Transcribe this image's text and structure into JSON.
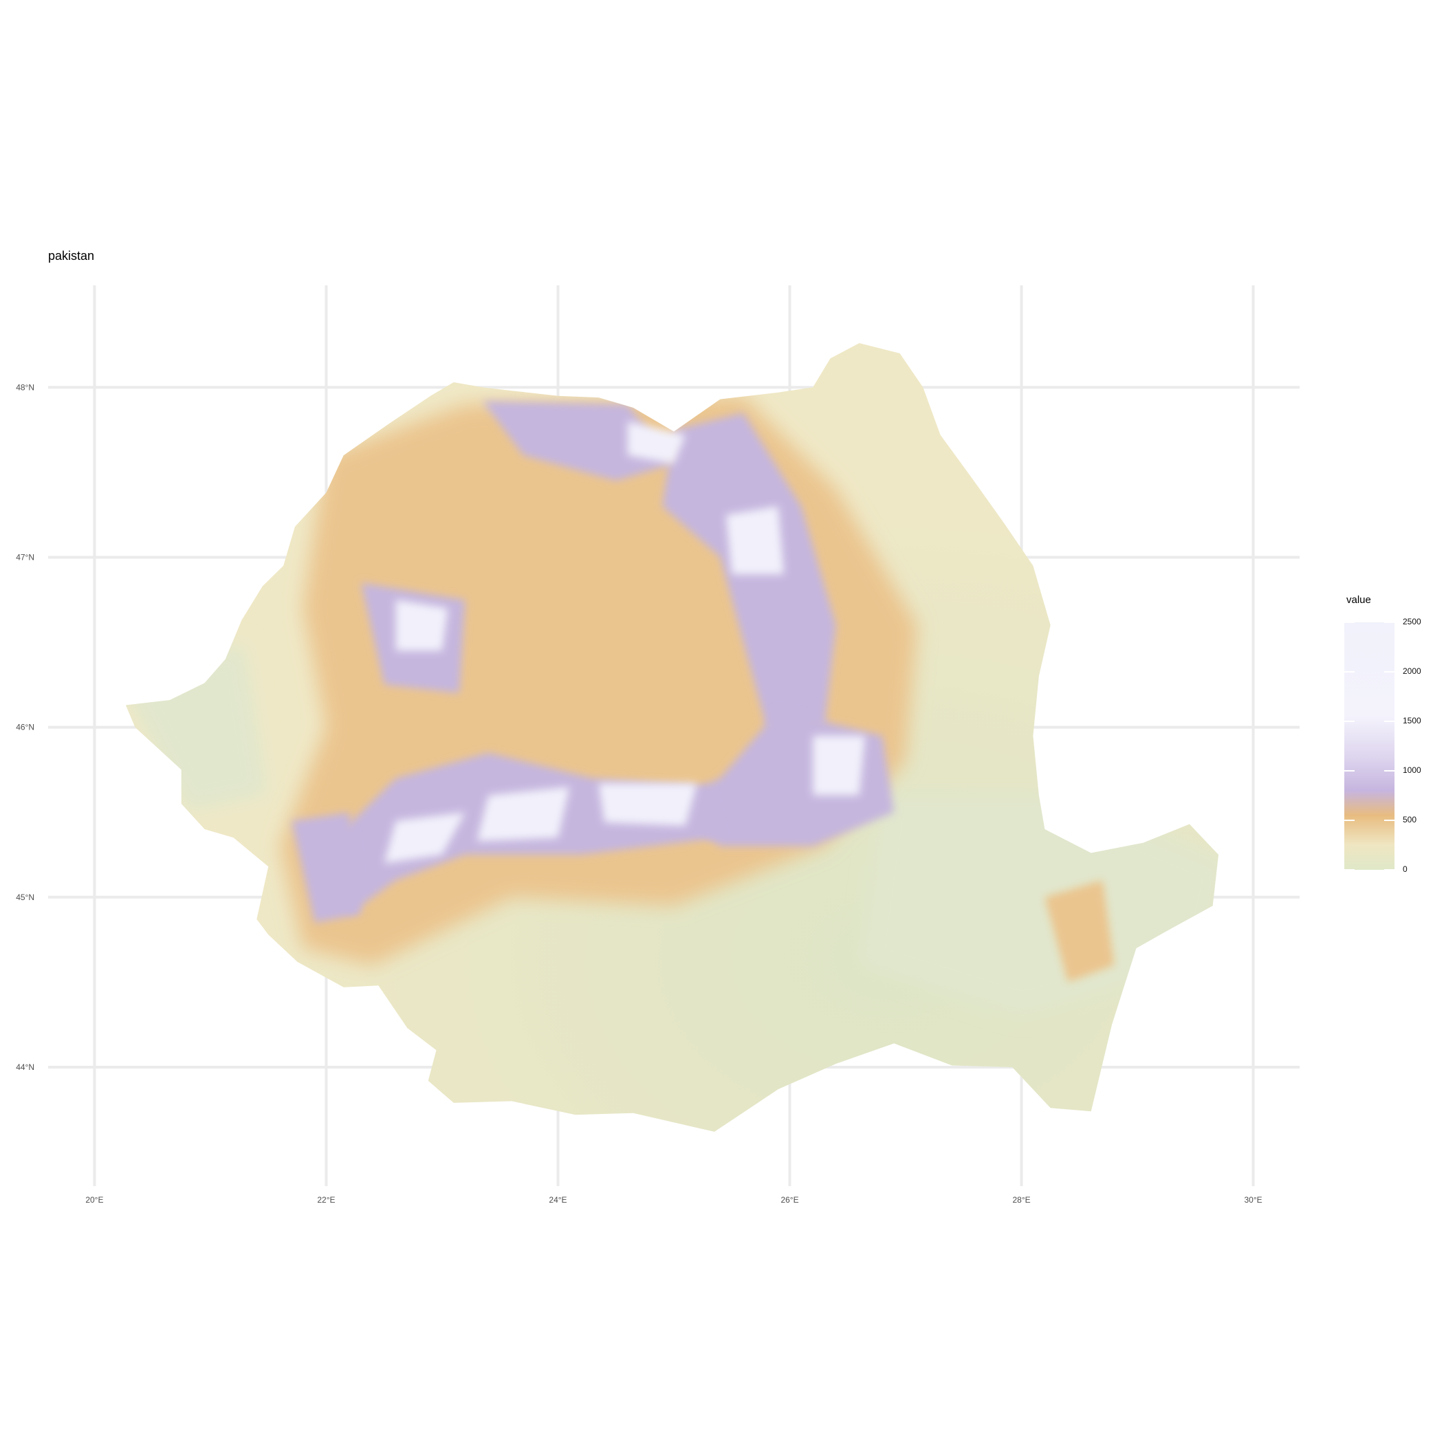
{
  "title": "pakistan",
  "map": {
    "projection": "geographic lon/lat",
    "lon_range": [
      19.6,
      30.4
    ],
    "lat_range": [
      43.3,
      48.6
    ],
    "gridlines": true,
    "lon_ticks": [
      {
        "value": 20,
        "label": "20°E"
      },
      {
        "value": 22,
        "label": "22°E"
      },
      {
        "value": 24,
        "label": "24°E"
      },
      {
        "value": 26,
        "label": "26°E"
      },
      {
        "value": 28,
        "label": "28°E"
      },
      {
        "value": 30,
        "label": "30°E"
      }
    ],
    "lat_ticks": [
      {
        "value": 48,
        "label": "48°N"
      },
      {
        "value": 47,
        "label": "47°N"
      },
      {
        "value": 46,
        "label": "46°N"
      },
      {
        "value": 45,
        "label": "45°N"
      },
      {
        "value": 44,
        "label": "44°N"
      }
    ],
    "boundary": [
      [
        20.27,
        46.13
      ],
      [
        20.65,
        46.16
      ],
      [
        20.95,
        46.26
      ],
      [
        21.13,
        46.4
      ],
      [
        21.27,
        46.63
      ],
      [
        21.45,
        46.83
      ],
      [
        21.63,
        46.95
      ],
      [
        21.73,
        47.18
      ],
      [
        22.0,
        47.38
      ],
      [
        22.15,
        47.6
      ],
      [
        22.55,
        47.79
      ],
      [
        22.9,
        47.95
      ],
      [
        23.1,
        48.03
      ],
      [
        23.35,
        48.0
      ],
      [
        23.6,
        47.98
      ],
      [
        24.0,
        47.95
      ],
      [
        24.35,
        47.94
      ],
      [
        24.65,
        47.88
      ],
      [
        25.0,
        47.74
      ],
      [
        25.4,
        47.93
      ],
      [
        25.9,
        47.97
      ],
      [
        26.2,
        48.0
      ],
      [
        26.35,
        48.17
      ],
      [
        26.6,
        48.26
      ],
      [
        26.95,
        48.2
      ],
      [
        27.15,
        48.0
      ],
      [
        27.3,
        47.72
      ],
      [
        27.6,
        47.44
      ],
      [
        27.85,
        47.2
      ],
      [
        28.1,
        46.95
      ],
      [
        28.25,
        46.6
      ],
      [
        28.15,
        46.3
      ],
      [
        28.1,
        45.95
      ],
      [
        28.15,
        45.6
      ],
      [
        28.2,
        45.4
      ],
      [
        28.6,
        45.26
      ],
      [
        29.05,
        45.32
      ],
      [
        29.45,
        45.43
      ],
      [
        29.7,
        45.25
      ],
      [
        29.65,
        44.95
      ],
      [
        29.25,
        44.8
      ],
      [
        28.99,
        44.7
      ],
      [
        28.78,
        44.25
      ],
      [
        28.6,
        43.74
      ],
      [
        28.25,
        43.76
      ],
      [
        27.92,
        44.0
      ],
      [
        27.4,
        44.01
      ],
      [
        26.9,
        44.14
      ],
      [
        26.4,
        44.02
      ],
      [
        25.9,
        43.87
      ],
      [
        25.35,
        43.62
      ],
      [
        24.65,
        43.73
      ],
      [
        24.15,
        43.72
      ],
      [
        23.6,
        43.8
      ],
      [
        23.1,
        43.79
      ],
      [
        22.88,
        43.92
      ],
      [
        22.95,
        44.1
      ],
      [
        22.7,
        44.23
      ],
      [
        22.45,
        44.48
      ],
      [
        22.15,
        44.47
      ],
      [
        21.75,
        44.62
      ],
      [
        21.5,
        44.78
      ],
      [
        21.4,
        44.87
      ],
      [
        21.5,
        45.18
      ],
      [
        21.2,
        45.35
      ],
      [
        20.95,
        45.4
      ],
      [
        20.75,
        45.55
      ],
      [
        20.75,
        45.75
      ],
      [
        20.35,
        46.0
      ]
    ]
  },
  "elevation_colors": {
    "lowland": "#e1e7cd",
    "plain": "#efe7c4",
    "hill": "#ebc58e",
    "mountain": "#c5b6de",
    "peak": "#f2f1fb"
  },
  "legend": {
    "title": "value",
    "range": [
      0,
      2500
    ],
    "ticks": [
      {
        "value": 2500,
        "label": "2500"
      },
      {
        "value": 2000,
        "label": "2000"
      },
      {
        "value": 1500,
        "label": "1500"
      },
      {
        "value": 1000,
        "label": "1000"
      },
      {
        "value": 500,
        "label": "500"
      },
      {
        "value": 0,
        "label": "0"
      }
    ]
  }
}
